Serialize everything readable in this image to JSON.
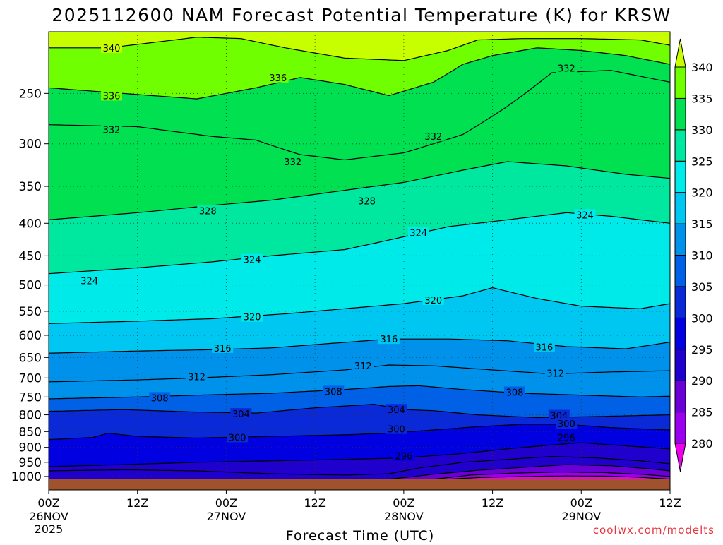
{
  "chart_data": {
    "type": "heatmap",
    "title": "2025112600 NAM Forecast Potential Temperature (K) for KRSW",
    "xlabel": "Forecast Time (UTC)",
    "ylabel": "",
    "credit": "coolwx.com/modelts",
    "y_scale": "log-pressure",
    "ylim": [
      1050,
      200
    ],
    "y_ticks": [
      250,
      300,
      350,
      400,
      450,
      500,
      550,
      600,
      650,
      700,
      750,
      800,
      850,
      900,
      950,
      1000
    ],
    "x_ticks": [
      {
        "hour": 0,
        "label": "00Z",
        "date": "26NOV",
        "year": "2025"
      },
      {
        "hour": 12,
        "label": "12Z",
        "date": "",
        "year": ""
      },
      {
        "hour": 24,
        "label": "00Z",
        "date": "27NOV",
        "year": ""
      },
      {
        "hour": 36,
        "label": "12Z",
        "date": "",
        "year": ""
      },
      {
        "hour": 48,
        "label": "00Z",
        "date": "28NOV",
        "year": ""
      },
      {
        "hour": 60,
        "label": "12Z",
        "date": "",
        "year": ""
      },
      {
        "hour": 72,
        "label": "00Z",
        "date": "29NOV",
        "year": ""
      },
      {
        "hour": 84,
        "label": "12Z",
        "date": "",
        "year": ""
      }
    ],
    "xlim": [
      0,
      84
    ],
    "colorbar": {
      "levels": [
        280,
        285,
        290,
        295,
        300,
        305,
        310,
        315,
        320,
        325,
        330,
        335,
        340
      ],
      "colors": [
        "#ee00ee",
        "#9a00ee",
        "#6a00d6",
        "#2000cc",
        "#0000e0",
        "#0a2ad8",
        "#0060e6",
        "#0092ea",
        "#00c6f2",
        "#00eaea",
        "#00e8a0",
        "#00e050",
        "#70ff00",
        "#c8ff00"
      ]
    },
    "terrain_color": "#a0522d",
    "surface_pressure": 1010,
    "series": [
      {
        "theta": 280,
        "p": [
          [
            54,
            1010
          ],
          [
            58,
            1004
          ],
          [
            64,
            1000
          ],
          [
            70,
            998
          ],
          [
            76,
            999
          ],
          [
            80,
            1003
          ],
          [
            84,
            1010
          ]
        ]
      },
      {
        "theta": 284,
        "p": [
          [
            52,
            1010
          ],
          [
            57,
            995
          ],
          [
            63,
            988
          ],
          [
            69,
            984
          ],
          [
            75,
            986
          ],
          [
            80,
            992
          ],
          [
            84,
            1000
          ]
        ]
      },
      {
        "theta": 288,
        "p": [
          [
            46,
            1010
          ],
          [
            52,
            992
          ],
          [
            58,
            978
          ],
          [
            64,
            968
          ],
          [
            70,
            958
          ],
          [
            76,
            962
          ],
          [
            81,
            972
          ],
          [
            84,
            980
          ]
        ]
      },
      {
        "theta": 292,
        "p": [
          [
            0,
            980
          ],
          [
            10,
            976
          ],
          [
            20,
            980
          ],
          [
            30,
            990
          ],
          [
            40,
            995
          ],
          [
            46,
            990
          ],
          [
            50,
            970
          ],
          [
            56,
            950
          ],
          [
            62,
            940
          ],
          [
            68,
            930
          ],
          [
            74,
            935
          ],
          [
            80,
            945
          ],
          [
            84,
            955
          ]
        ]
      },
      {
        "theta": 296,
        "p": [
          [
            0,
            965
          ],
          [
            10,
            958
          ],
          [
            20,
            950
          ],
          [
            30,
            945
          ],
          [
            40,
            940
          ],
          [
            48,
            935
          ],
          [
            56,
            920
          ],
          [
            62,
            905
          ],
          [
            68,
            892
          ],
          [
            72,
            885
          ],
          [
            78,
            895
          ],
          [
            84,
            905
          ]
        ]
      },
      {
        "theta": 300,
        "p": [
          [
            0,
            875
          ],
          [
            6,
            868
          ],
          [
            8,
            855
          ],
          [
            12,
            865
          ],
          [
            20,
            870
          ],
          [
            30,
            865
          ],
          [
            40,
            860
          ],
          [
            46,
            855
          ],
          [
            52,
            845
          ],
          [
            58,
            835
          ],
          [
            64,
            828
          ],
          [
            70,
            828
          ],
          [
            76,
            838
          ],
          [
            84,
            845
          ]
        ]
      },
      {
        "theta": 304,
        "p": [
          [
            0,
            790
          ],
          [
            10,
            785
          ],
          [
            20,
            792
          ],
          [
            28,
            795
          ],
          [
            36,
            780
          ],
          [
            44,
            770
          ],
          [
            48,
            785
          ],
          [
            52,
            788
          ],
          [
            58,
            800
          ],
          [
            66,
            808
          ],
          [
            74,
            805
          ],
          [
            84,
            800
          ]
        ]
      },
      {
        "theta": 308,
        "p": [
          [
            0,
            755
          ],
          [
            12,
            750
          ],
          [
            20,
            745
          ],
          [
            30,
            740
          ],
          [
            40,
            730
          ],
          [
            46,
            722
          ],
          [
            50,
            720
          ],
          [
            56,
            730
          ],
          [
            64,
            740
          ],
          [
            72,
            745
          ],
          [
            80,
            750
          ],
          [
            84,
            748
          ]
        ]
      },
      {
        "theta": 312,
        "p": [
          [
            0,
            710
          ],
          [
            12,
            705
          ],
          [
            20,
            700
          ],
          [
            30,
            692
          ],
          [
            40,
            680
          ],
          [
            46,
            668
          ],
          [
            52,
            670
          ],
          [
            60,
            680
          ],
          [
            68,
            690
          ],
          [
            76,
            685
          ],
          [
            84,
            682
          ]
        ]
      },
      {
        "theta": 316,
        "p": [
          [
            0,
            640
          ],
          [
            12,
            635
          ],
          [
            22,
            632
          ],
          [
            30,
            628
          ],
          [
            38,
            618
          ],
          [
            46,
            608
          ],
          [
            54,
            608
          ],
          [
            62,
            612
          ],
          [
            70,
            625
          ],
          [
            78,
            630
          ],
          [
            84,
            615
          ]
        ]
      },
      {
        "theta": 320,
        "p": [
          [
            0,
            575
          ],
          [
            12,
            570
          ],
          [
            22,
            565
          ],
          [
            32,
            555
          ],
          [
            40,
            545
          ],
          [
            48,
            535
          ],
          [
            56,
            520
          ],
          [
            60,
            505
          ],
          [
            66,
            525
          ],
          [
            72,
            540
          ],
          [
            80,
            545
          ],
          [
            84,
            535
          ]
        ]
      },
      {
        "theta": 324,
        "p": [
          [
            0,
            480
          ],
          [
            12,
            470
          ],
          [
            22,
            460
          ],
          [
            30,
            450
          ],
          [
            40,
            440
          ],
          [
            48,
            420
          ],
          [
            54,
            405
          ],
          [
            62,
            395
          ],
          [
            70,
            385
          ],
          [
            76,
            390
          ],
          [
            84,
            400
          ]
        ]
      },
      {
        "theta": 328,
        "p": [
          [
            0,
            395
          ],
          [
            12,
            385
          ],
          [
            22,
            375
          ],
          [
            30,
            368
          ],
          [
            40,
            355
          ],
          [
            48,
            345
          ],
          [
            56,
            330
          ],
          [
            62,
            320
          ],
          [
            70,
            325
          ],
          [
            78,
            335
          ],
          [
            84,
            340
          ]
        ]
      },
      {
        "theta": 332,
        "p": [
          [
            0,
            280
          ],
          [
            12,
            282
          ],
          [
            22,
            292
          ],
          [
            28,
            296
          ],
          [
            34,
            312
          ],
          [
            40,
            318
          ],
          [
            48,
            310
          ],
          [
            56,
            290
          ],
          [
            62,
            262
          ],
          [
            68,
            232
          ],
          [
            76,
            230
          ],
          [
            84,
            240
          ]
        ]
      },
      {
        "theta": 336,
        "p": [
          [
            0,
            245
          ],
          [
            10,
            250
          ],
          [
            20,
            255
          ],
          [
            28,
            245
          ],
          [
            34,
            236
          ],
          [
            40,
            242
          ],
          [
            46,
            252
          ],
          [
            52,
            240
          ],
          [
            56,
            225
          ],
          [
            60,
            218
          ],
          [
            66,
            212
          ],
          [
            72,
            214
          ],
          [
            78,
            218
          ],
          [
            84,
            225
          ]
        ]
      },
      {
        "theta": 340,
        "p": [
          [
            0,
            212
          ],
          [
            8,
            212
          ],
          [
            14,
            208
          ],
          [
            20,
            204
          ],
          [
            26,
            205
          ],
          [
            32,
            212
          ],
          [
            40,
            220
          ],
          [
            48,
            222
          ],
          [
            54,
            214
          ],
          [
            58,
            206
          ],
          [
            64,
            205
          ],
          [
            72,
            205
          ],
          [
            80,
            206
          ],
          [
            84,
            210
          ]
        ]
      }
    ],
    "contour_labels": [
      {
        "text": "340",
        "h": 8.5,
        "p": 212
      },
      {
        "text": "336",
        "h": 31,
        "p": 236
      },
      {
        "text": "332",
        "h": 70,
        "p": 228
      },
      {
        "text": "336",
        "h": 8.5,
        "p": 252
      },
      {
        "text": "332",
        "h": 8.5,
        "p": 285
      },
      {
        "text": "332",
        "h": 33,
        "p": 320
      },
      {
        "text": "332",
        "h": 52,
        "p": 292
      },
      {
        "text": "328",
        "h": 43,
        "p": 369
      },
      {
        "text": "328",
        "h": 21.5,
        "p": 382
      },
      {
        "text": "324",
        "h": 72.5,
        "p": 388
      },
      {
        "text": "324",
        "h": 50,
        "p": 414
      },
      {
        "text": "324",
        "h": 27.5,
        "p": 456
      },
      {
        "text": "324",
        "h": 5.5,
        "p": 492
      },
      {
        "text": "320",
        "h": 52,
        "p": 528
      },
      {
        "text": "320",
        "h": 27.5,
        "p": 561
      },
      {
        "text": "316",
        "h": 46,
        "p": 608
      },
      {
        "text": "316",
        "h": 67,
        "p": 626
      },
      {
        "text": "316",
        "h": 23.5,
        "p": 628
      },
      {
        "text": "312",
        "h": 42.5,
        "p": 670
      },
      {
        "text": "312",
        "h": 68.5,
        "p": 688
      },
      {
        "text": "312",
        "h": 20,
        "p": 697
      },
      {
        "text": "308",
        "h": 63,
        "p": 737
      },
      {
        "text": "308",
        "h": 38.5,
        "p": 735
      },
      {
        "text": "308",
        "h": 15,
        "p": 752
      },
      {
        "text": "304",
        "h": 47,
        "p": 785
      },
      {
        "text": "304",
        "h": 69,
        "p": 802
      },
      {
        "text": "304",
        "h": 26,
        "p": 797
      },
      {
        "text": "300",
        "h": 70,
        "p": 826
      },
      {
        "text": "300",
        "h": 47,
        "p": 842
      },
      {
        "text": "296",
        "h": 70,
        "p": 868
      },
      {
        "text": "300",
        "h": 25.5,
        "p": 868
      },
      {
        "text": "296",
        "h": 48,
        "p": 928
      }
    ]
  }
}
